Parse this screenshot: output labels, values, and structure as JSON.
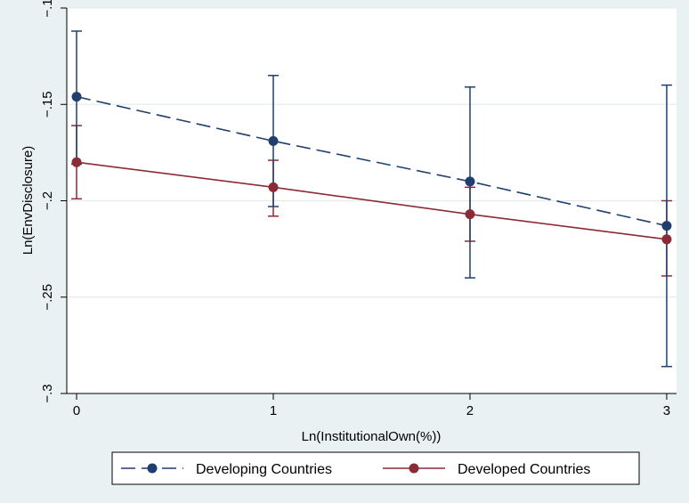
{
  "chart_data": {
    "type": "line",
    "title": "",
    "xlabel": "Ln(InstitutionalOwn(%))",
    "ylabel": "Ln(EnvDisclosure)",
    "x": [
      0,
      1,
      2,
      3
    ],
    "x_ticks": [
      "0",
      "1",
      "2",
      "3"
    ],
    "y_ticks": [
      "−.3",
      "−.25",
      "−.2",
      "−.15",
      "−.1"
    ],
    "xlim": [
      -0.05,
      3.05
    ],
    "ylim": [
      -0.3,
      -0.1
    ],
    "grid": true,
    "legend_position": "bottom",
    "series": [
      {
        "name": "Developing Countries",
        "color": "#1f3f6e",
        "line_style": "dashed",
        "marker": "circle",
        "values": [
          -0.146,
          -0.169,
          -0.19,
          -0.213
        ],
        "ci_lower": [
          -0.181,
          -0.203,
          -0.24,
          -0.286
        ],
        "ci_upper": [
          -0.112,
          -0.135,
          -0.141,
          -0.14
        ]
      },
      {
        "name": "Developed Countries",
        "color": "#8a2b35",
        "line_style": "solid",
        "marker": "circle",
        "values": [
          -0.18,
          -0.193,
          -0.207,
          -0.22
        ],
        "ci_lower": [
          -0.199,
          -0.208,
          -0.221,
          -0.239
        ],
        "ci_upper": [
          -0.161,
          -0.179,
          -0.193,
          -0.2
        ]
      }
    ]
  }
}
